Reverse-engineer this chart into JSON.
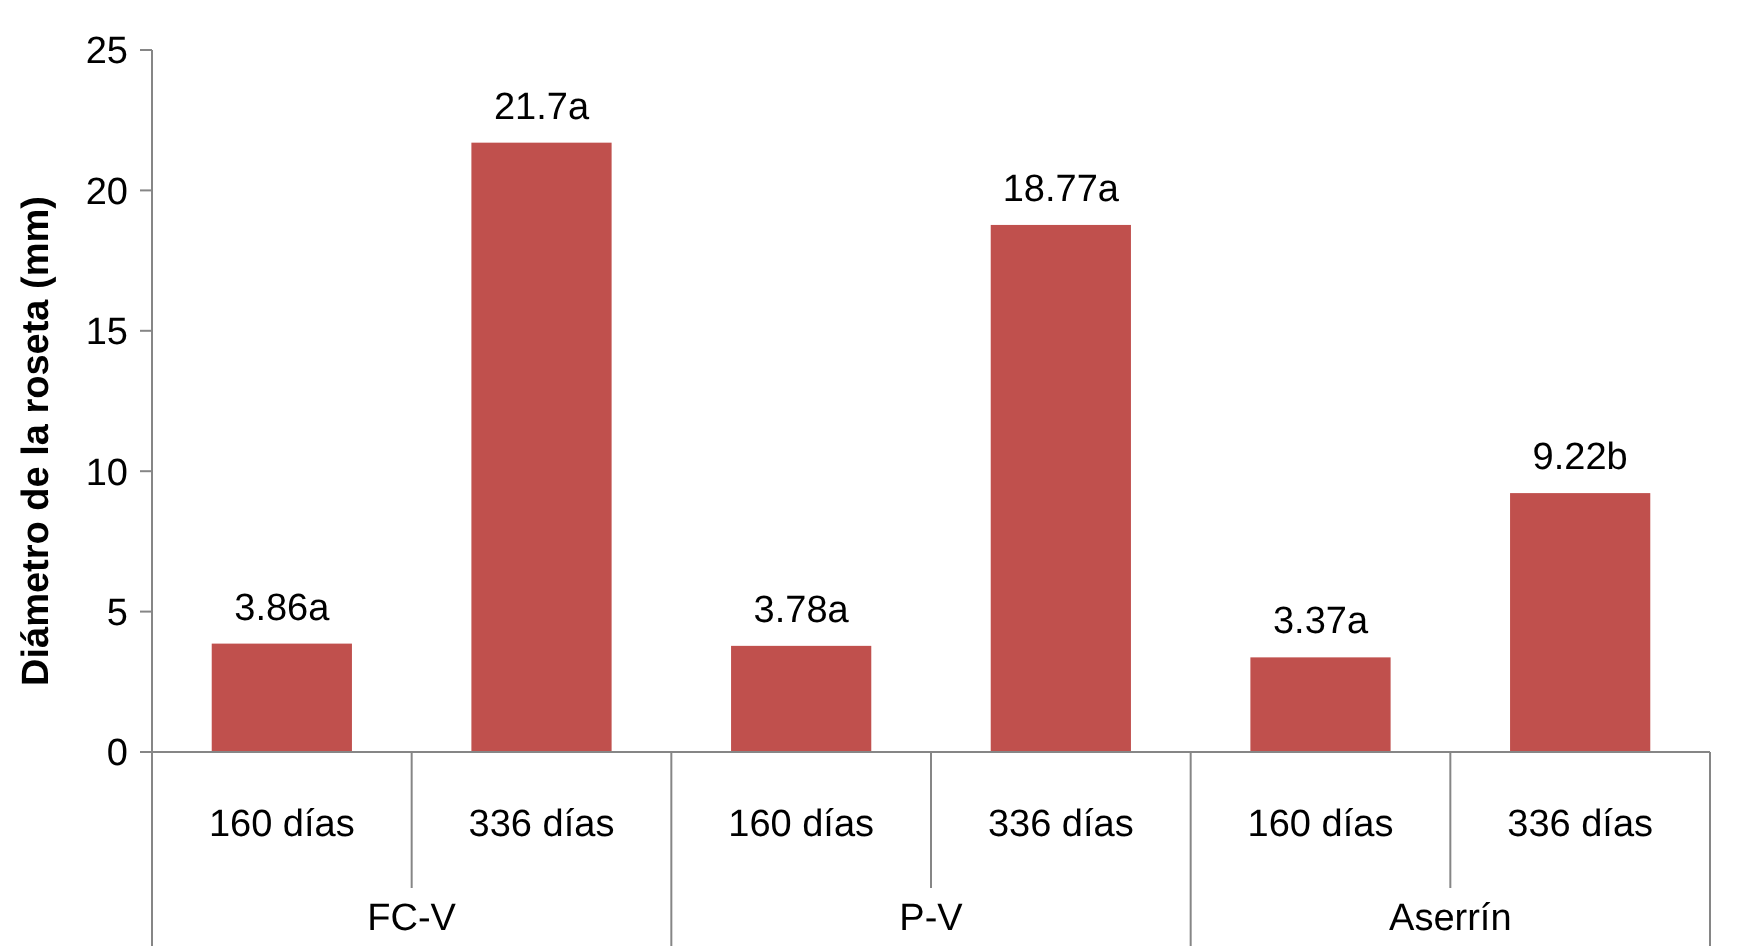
{
  "chart_data": {
    "type": "bar",
    "ylabel": "Diámetro de la roseta (mm)",
    "categories": [
      "160 días",
      "336 días",
      "160 días",
      "336 días",
      "160 días",
      "336 días"
    ],
    "values": [
      3.86,
      21.7,
      3.78,
      18.77,
      3.37,
      9.22
    ],
    "value_labels": [
      "3.86a",
      "21.7a",
      "3.78a",
      "18.77a",
      "3.37a",
      "9.22b"
    ],
    "color": "#c0504d",
    "ylim": [
      0,
      25
    ],
    "yticks": [
      0,
      5,
      10,
      15,
      20,
      25
    ],
    "grid": false,
    "annotations": [
      "FC-V",
      "P-V",
      "Aserrín"
    ]
  }
}
